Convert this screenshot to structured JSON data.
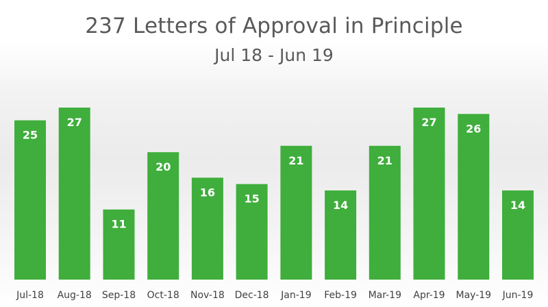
{
  "chart_data": {
    "type": "bar",
    "title": "237 Letters of Approval in Principle",
    "subtitle": "Jul 18 - Jun 19",
    "xlabel": "",
    "ylabel": "",
    "categories": [
      "Jul-18",
      "Aug-18",
      "Sep-18",
      "Oct-18",
      "Nov-18",
      "Dec-18",
      "Jan-19",
      "Feb-19",
      "Mar-19",
      "Apr-19",
      "May-19",
      "Jun-19"
    ],
    "values": [
      25,
      27,
      11,
      20,
      16,
      15,
      21,
      14,
      21,
      27,
      26,
      14
    ],
    "ylim": [
      0,
      27
    ],
    "grid": false,
    "legend": "none",
    "bar_color": "#3fae3c",
    "label_color": "#ffffff"
  }
}
